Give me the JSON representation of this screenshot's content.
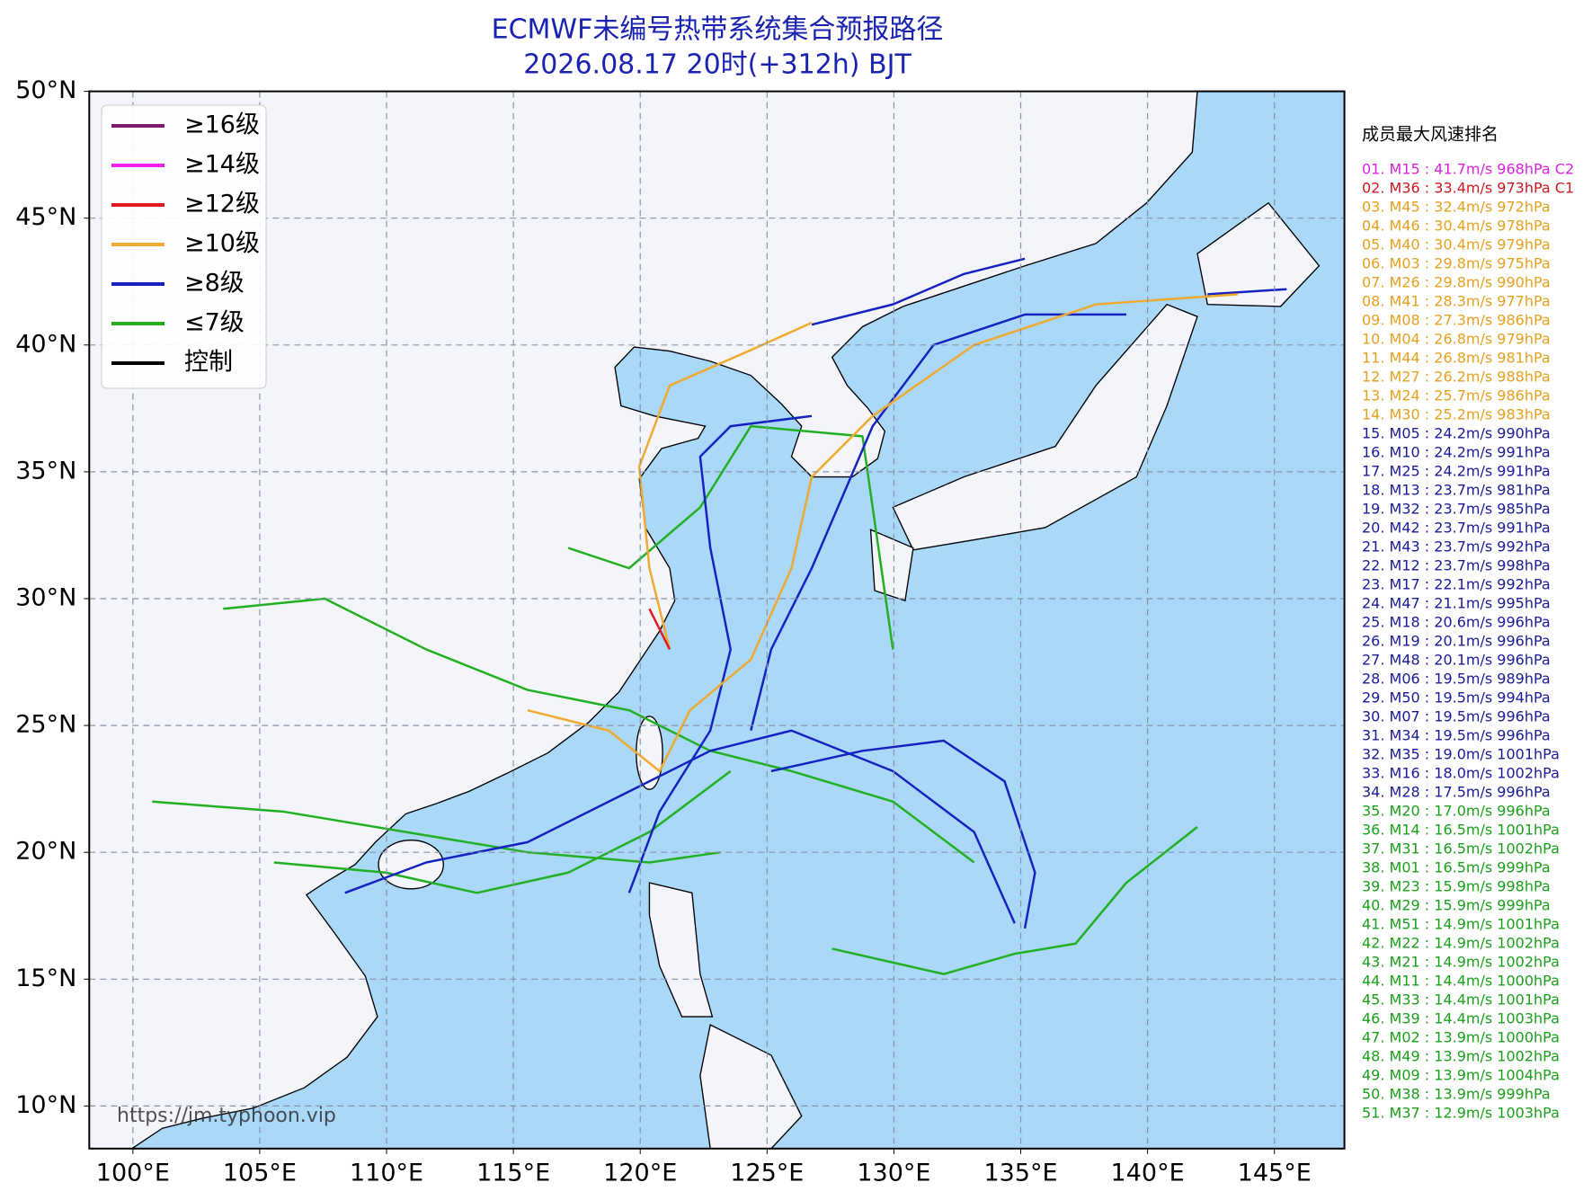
{
  "header": {
    "title": "ECMWF未编号热带系统集合预报路径",
    "subtitle": "2026.08.17 20时(+312h) BJT"
  },
  "map": {
    "xlim": [
      98.28,
      147.76
    ],
    "ylim": [
      8.32,
      50
    ],
    "xticks": [
      {
        "value": 100,
        "label": "100°E"
      },
      {
        "value": 105,
        "label": "105°E"
      },
      {
        "value": 110,
        "label": "110°E"
      },
      {
        "value": 115,
        "label": "115°E"
      },
      {
        "value": 120,
        "label": "120°E"
      },
      {
        "value": 125,
        "label": "125°E"
      },
      {
        "value": 130,
        "label": "130°E"
      },
      {
        "value": 135,
        "label": "135°E"
      },
      {
        "value": 140,
        "label": "140°E"
      },
      {
        "value": 145,
        "label": "145°E"
      }
    ],
    "yticks": [
      {
        "value": 10,
        "label": "10°N"
      },
      {
        "value": 15,
        "label": "15°N"
      },
      {
        "value": 20,
        "label": "20°N"
      },
      {
        "value": 25,
        "label": "25°N"
      },
      {
        "value": 30,
        "label": "30°N"
      },
      {
        "value": 35,
        "label": "35°N"
      },
      {
        "value": 40,
        "label": "40°N"
      },
      {
        "value": 45,
        "label": "45°N"
      },
      {
        "value": 50,
        "label": "50°N"
      }
    ],
    "legend": [
      {
        "label": "≥16级",
        "color": "#7b1a6e"
      },
      {
        "label": "≥14级",
        "color": "#ee22ee"
      },
      {
        "label": "≥12级",
        "color": "#e01a20"
      },
      {
        "label": "≥10级",
        "color": "#f0aa30"
      },
      {
        "label": "≥8级",
        "color": "#1522c0"
      },
      {
        "label": "≤7级",
        "color": "#22b022"
      },
      {
        "label": "控制",
        "color": "#000000"
      }
    ],
    "watermark": "https://jm.typhoon.vip"
  },
  "ranking": {
    "title": "成员最大风速排名",
    "entries": [
      {
        "text": "01. M15 : 41.7m/s 968hPa C2",
        "color": "#dd22dd"
      },
      {
        "text": "02. M36 : 33.4m/s 973hPa C1",
        "color": "#d01820"
      },
      {
        "text": "03. M45 : 32.4m/s 972hPa",
        "color": "#e6a020"
      },
      {
        "text": "04. M46 : 30.4m/s 978hPa",
        "color": "#e6a020"
      },
      {
        "text": "05. M40 : 30.4m/s 979hPa",
        "color": "#e6a020"
      },
      {
        "text": "06. M03 : 29.8m/s 975hPa",
        "color": "#e6a020"
      },
      {
        "text": "07. M26 : 29.8m/s 990hPa",
        "color": "#e6a020"
      },
      {
        "text": "08. M41 : 28.3m/s 977hPa",
        "color": "#e6a020"
      },
      {
        "text": "09. M08 : 27.3m/s 986hPa",
        "color": "#e6a020"
      },
      {
        "text": "10. M04 : 26.8m/s 979hPa",
        "color": "#e6a020"
      },
      {
        "text": "11. M44 : 26.8m/s 981hPa",
        "color": "#e6a020"
      },
      {
        "text": "12. M27 : 26.2m/s 988hPa",
        "color": "#e6a020"
      },
      {
        "text": "13. M24 : 25.7m/s 986hPa",
        "color": "#e6a020"
      },
      {
        "text": "14. M30 : 25.2m/s 983hPa",
        "color": "#e6a020"
      },
      {
        "text": "15. M05 : 24.2m/s 990hPa",
        "color": "#1a1a9a"
      },
      {
        "text": "16. M10 : 24.2m/s 991hPa",
        "color": "#1a1a9a"
      },
      {
        "text": "17. M25 : 24.2m/s 991hPa",
        "color": "#1a1a9a"
      },
      {
        "text": "18. M13 : 23.7m/s 981hPa",
        "color": "#1a1a9a"
      },
      {
        "text": "19. M32 : 23.7m/s 985hPa",
        "color": "#1a1a9a"
      },
      {
        "text": "20. M42 : 23.7m/s 991hPa",
        "color": "#1a1a9a"
      },
      {
        "text": "21. M43 : 23.7m/s 992hPa",
        "color": "#1a1a9a"
      },
      {
        "text": "22. M12 : 23.7m/s 998hPa",
        "color": "#1a1a9a"
      },
      {
        "text": "23. M17 : 22.1m/s 992hPa",
        "color": "#1a1a9a"
      },
      {
        "text": "24. M47 : 21.1m/s 995hPa",
        "color": "#1a1a9a"
      },
      {
        "text": "25. M18 : 20.6m/s 996hPa",
        "color": "#1a1a9a"
      },
      {
        "text": "26. M19 : 20.1m/s 996hPa",
        "color": "#1a1a9a"
      },
      {
        "text": "27. M48 : 20.1m/s 996hPa",
        "color": "#1a1a9a"
      },
      {
        "text": "28. M06 : 19.5m/s 989hPa",
        "color": "#1a1a9a"
      },
      {
        "text": "29. M50 : 19.5m/s 994hPa",
        "color": "#1a1a9a"
      },
      {
        "text": "30. M07 : 19.5m/s 996hPa",
        "color": "#1a1a9a"
      },
      {
        "text": "31. M34 : 19.5m/s 996hPa",
        "color": "#1a1a9a"
      },
      {
        "text": "32. M35 : 19.0m/s 1001hPa",
        "color": "#1a1a9a"
      },
      {
        "text": "33. M16 : 18.0m/s 1002hPa",
        "color": "#1a1a9a"
      },
      {
        "text": "34. M28 : 17.5m/s 996hPa",
        "color": "#1a1a9a"
      },
      {
        "text": "35. M20 : 17.0m/s 996hPa",
        "color": "#1aa01a"
      },
      {
        "text": "36. M14 : 16.5m/s 1001hPa",
        "color": "#1aa01a"
      },
      {
        "text": "37. M31 : 16.5m/s 1002hPa",
        "color": "#1aa01a"
      },
      {
        "text": "38. M01 : 16.5m/s 999hPa",
        "color": "#1aa01a"
      },
      {
        "text": "39. M23 : 15.9m/s 998hPa",
        "color": "#1aa01a"
      },
      {
        "text": "40. M29 : 15.9m/s 999hPa",
        "color": "#1aa01a"
      },
      {
        "text": "41. M51 : 14.9m/s 1001hPa",
        "color": "#1aa01a"
      },
      {
        "text": "42. M22 : 14.9m/s 1002hPa",
        "color": "#1aa01a"
      },
      {
        "text": "43. M21 : 14.9m/s 1002hPa",
        "color": "#1aa01a"
      },
      {
        "text": "44. M11 : 14.4m/s 1000hPa",
        "color": "#1aa01a"
      },
      {
        "text": "45. M33 : 14.4m/s 1001hPa",
        "color": "#1aa01a"
      },
      {
        "text": "46. M39 : 14.4m/s 1003hPa",
        "color": "#1aa01a"
      },
      {
        "text": "47. M02 : 13.9m/s 1000hPa",
        "color": "#1aa01a"
      },
      {
        "text": "48. M49 : 13.9m/s 1002hPa",
        "color": "#1aa01a"
      },
      {
        "text": "49. M09 : 13.9m/s 1004hPa",
        "color": "#1aa01a"
      },
      {
        "text": "50. M38 : 13.9m/s 999hPa",
        "color": "#1aa01a"
      },
      {
        "text": "51. M37 : 12.9m/s 1003hPa",
        "color": "#1aa01a"
      }
    ]
  }
}
